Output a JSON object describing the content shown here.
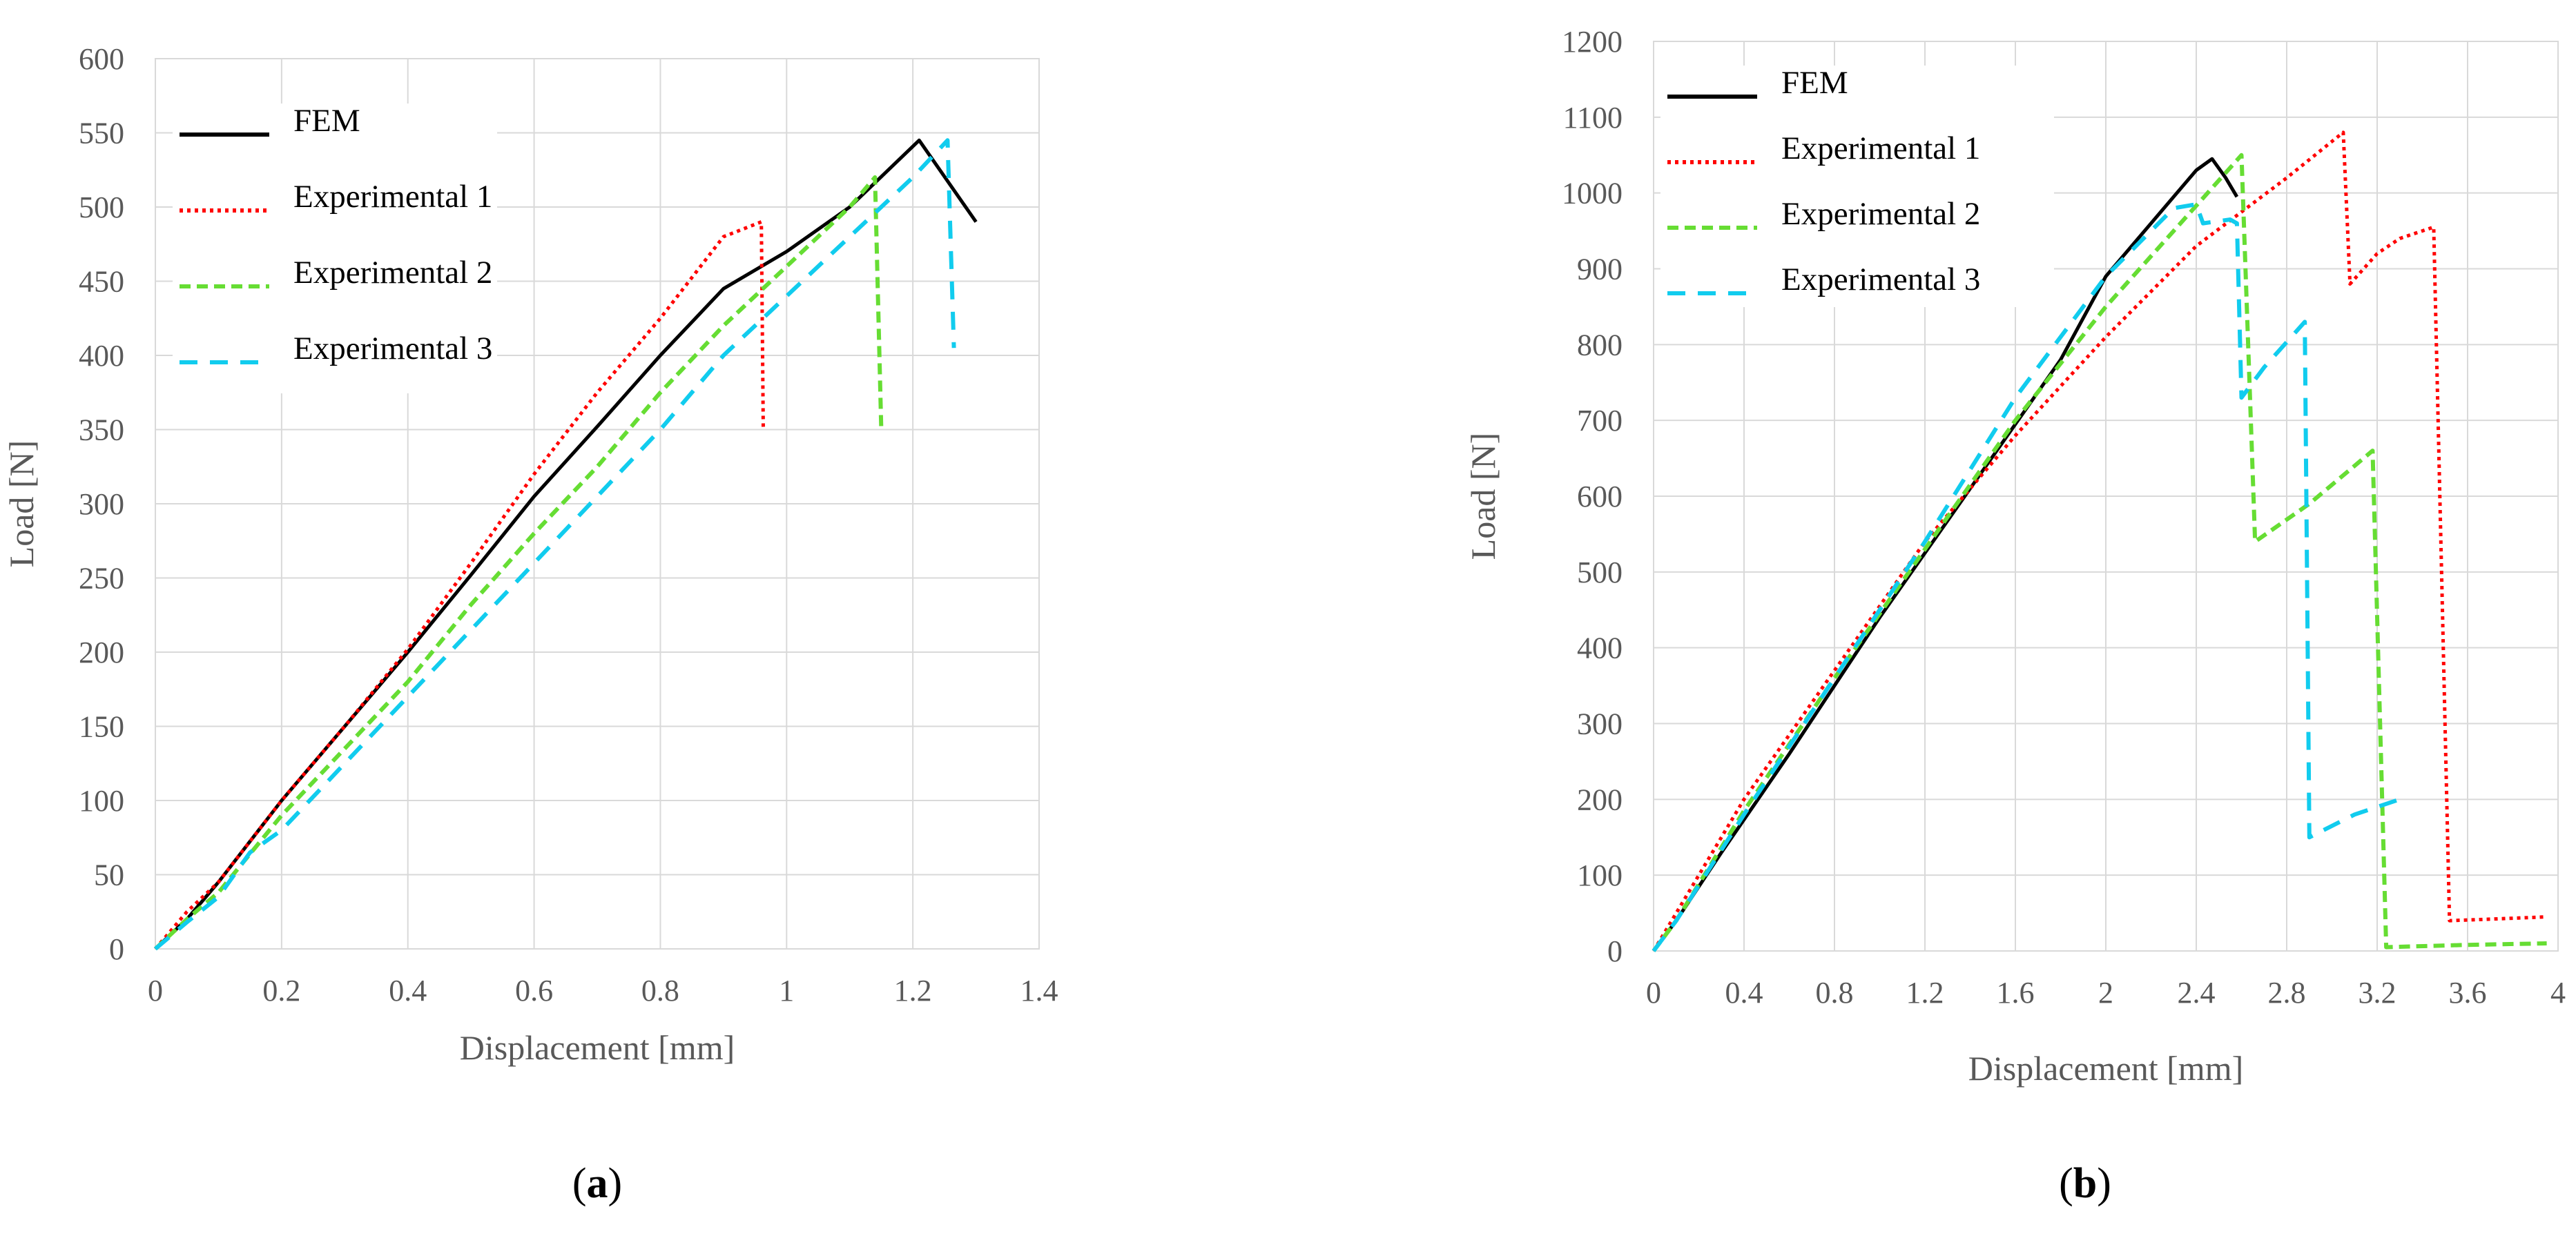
{
  "chart_data": [
    {
      "type": "line",
      "label": "(a)",
      "xlabel": "Displacement [mm]",
      "ylabel": "Load [N]",
      "xlim": [
        0,
        1.4
      ],
      "ylim": [
        0,
        600
      ],
      "xticks": [
        "0",
        "0.2",
        "0.4",
        "0.6",
        "0.8",
        "1",
        "1.2",
        "1.4"
      ],
      "yticks": [
        "0",
        "50",
        "100",
        "150",
        "200",
        "250",
        "300",
        "350",
        "400",
        "450",
        "500",
        "550",
        "600"
      ],
      "grid": true,
      "legend_position": "top-left",
      "series": [
        {
          "name": "FEM",
          "color": "#000000",
          "style": "solid",
          "points": [
            [
              0,
              0
            ],
            [
              0.05,
              20
            ],
            [
              0.1,
              45
            ],
            [
              0.2,
              100
            ],
            [
              0.3,
              150
            ],
            [
              0.4,
              200
            ],
            [
              0.5,
              252
            ],
            [
              0.6,
              305
            ],
            [
              0.7,
              352
            ],
            [
              0.8,
              400
            ],
            [
              0.9,
              445
            ],
            [
              1.0,
              470
            ],
            [
              1.1,
              500
            ],
            [
              1.21,
              545
            ],
            [
              1.3,
              490
            ]
          ]
        },
        {
          "name": "Experimental 1",
          "color": "#ff0000",
          "style": "dotted",
          "points": [
            [
              0,
              0
            ],
            [
              0.05,
              25
            ],
            [
              0.1,
              45
            ],
            [
              0.2,
              100
            ],
            [
              0.3,
              150
            ],
            [
              0.4,
              202
            ],
            [
              0.5,
              260
            ],
            [
              0.6,
              320
            ],
            [
              0.7,
              375
            ],
            [
              0.8,
              425
            ],
            [
              0.9,
              480
            ],
            [
              0.96,
              490
            ],
            [
              0.963,
              350
            ]
          ]
        },
        {
          "name": "Experimental 2",
          "color": "#66dd33",
          "style": "dashed",
          "points": [
            [
              0,
              0
            ],
            [
              0.05,
              20
            ],
            [
              0.1,
              38
            ],
            [
              0.2,
              90
            ],
            [
              0.3,
              135
            ],
            [
              0.4,
              180
            ],
            [
              0.5,
              232
            ],
            [
              0.6,
              280
            ],
            [
              0.7,
              325
            ],
            [
              0.8,
              375
            ],
            [
              0.9,
              420
            ],
            [
              1.0,
              460
            ],
            [
              1.1,
              500
            ],
            [
              1.14,
              520
            ],
            [
              1.15,
              350
            ]
          ]
        },
        {
          "name": "Experimental 3",
          "color": "#11ccee",
          "style": "dash",
          "points": [
            [
              0,
              0
            ],
            [
              0.05,
              18
            ],
            [
              0.1,
              35
            ],
            [
              0.15,
              65
            ],
            [
              0.2,
              80
            ],
            [
              0.3,
              125
            ],
            [
              0.4,
              170
            ],
            [
              0.5,
              215
            ],
            [
              0.6,
              260
            ],
            [
              0.7,
              305
            ],
            [
              0.8,
              350
            ],
            [
              0.9,
              400
            ],
            [
              1.0,
              440
            ],
            [
              1.1,
              480
            ],
            [
              1.2,
              520
            ],
            [
              1.255,
              545
            ],
            [
              1.265,
              405
            ]
          ]
        }
      ]
    },
    {
      "type": "line",
      "label": "(b)",
      "xlabel": "Displacement [mm]",
      "ylabel": "Load [N]",
      "xlim": [
        0,
        4
      ],
      "ylim": [
        0,
        1200
      ],
      "xticks": [
        "0",
        "0.4",
        "0.8",
        "1.2",
        "1.6",
        "2",
        "2.4",
        "2.8",
        "3.2",
        "3.6",
        "4"
      ],
      "yticks": [
        "0",
        "100",
        "200",
        "300",
        "400",
        "500",
        "600",
        "700",
        "800",
        "900",
        "1000",
        "1100",
        "1200"
      ],
      "grid": true,
      "legend_position": "top-left",
      "series": [
        {
          "name": "FEM",
          "color": "#000000",
          "style": "solid",
          "points": [
            [
              0,
              0
            ],
            [
              0.1,
              40
            ],
            [
              0.3,
              130
            ],
            [
              0.6,
              260
            ],
            [
              1.0,
              440
            ],
            [
              1.4,
              610
            ],
            [
              1.8,
              780
            ],
            [
              2.0,
              890
            ],
            [
              2.2,
              960
            ],
            [
              2.4,
              1030
            ],
            [
              2.47,
              1045
            ],
            [
              2.53,
              1020
            ],
            [
              2.58,
              995
            ]
          ]
        },
        {
          "name": "Experimental 1",
          "color": "#ff0000",
          "style": "dotted",
          "points": [
            [
              0,
              0
            ],
            [
              0.1,
              50
            ],
            [
              0.4,
              200
            ],
            [
              0.8,
              370
            ],
            [
              1.2,
              540
            ],
            [
              1.6,
              680
            ],
            [
              2.0,
              810
            ],
            [
              2.4,
              930
            ],
            [
              2.8,
              1020
            ],
            [
              3.05,
              1080
            ],
            [
              3.08,
              880
            ],
            [
              3.2,
              920
            ],
            [
              3.3,
              940
            ],
            [
              3.45,
              955
            ],
            [
              3.52,
              40
            ],
            [
              3.7,
              42
            ],
            [
              3.95,
              45
            ]
          ]
        },
        {
          "name": "Experimental 2",
          "color": "#66dd33",
          "style": "dashed",
          "points": [
            [
              0,
              0
            ],
            [
              0.1,
              40
            ],
            [
              0.4,
              185
            ],
            [
              0.8,
              360
            ],
            [
              1.2,
              530
            ],
            [
              1.6,
              700
            ],
            [
              2.0,
              850
            ],
            [
              2.3,
              950
            ],
            [
              2.6,
              1050
            ],
            [
              2.66,
              540
            ],
            [
              2.9,
              590
            ],
            [
              3.18,
              660
            ],
            [
              3.24,
              5
            ],
            [
              3.6,
              8
            ],
            [
              3.95,
              10
            ]
          ]
        },
        {
          "name": "Experimental 3",
          "color": "#11ccee",
          "style": "dash",
          "points": [
            [
              0,
              0
            ],
            [
              0.1,
              40
            ],
            [
              0.4,
              180
            ],
            [
              0.8,
              360
            ],
            [
              1.2,
              540
            ],
            [
              1.6,
              730
            ],
            [
              2.0,
              890
            ],
            [
              2.3,
              980
            ],
            [
              2.4,
              985
            ],
            [
              2.43,
              960
            ],
            [
              2.55,
              965
            ],
            [
              2.58,
              960
            ],
            [
              2.6,
              730
            ],
            [
              2.7,
              770
            ],
            [
              2.88,
              830
            ],
            [
              2.9,
              150
            ],
            [
              3.1,
              180
            ],
            [
              3.3,
              200
            ]
          ]
        }
      ]
    }
  ]
}
